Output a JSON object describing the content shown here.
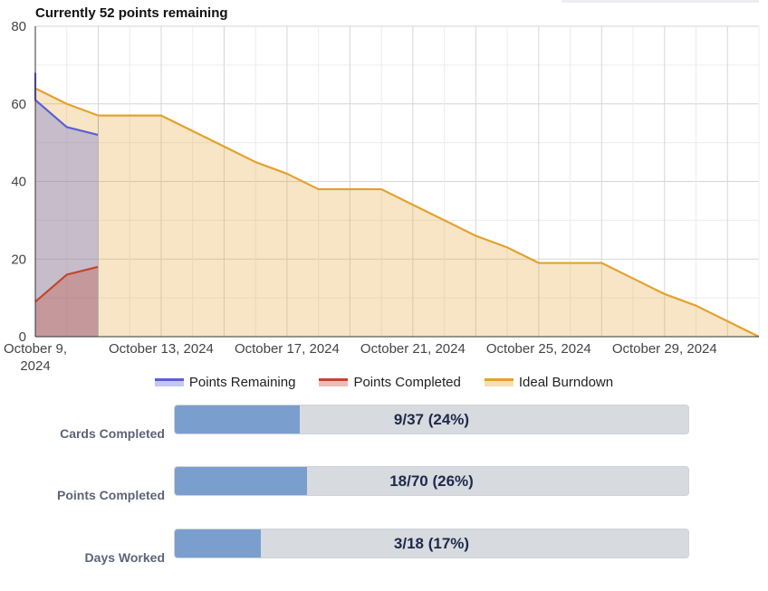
{
  "header": {
    "title": "Currently 52 points remaining"
  },
  "chart_data": {
    "type": "area",
    "title": "Currently 52 points remaining",
    "ylim": [
      0,
      80
    ],
    "yticks": [
      0,
      20,
      40,
      60,
      80
    ],
    "xlim": [
      "2024-10-09",
      "2024-11-01"
    ],
    "xtick_labels": [
      "October 9, 2024",
      "October 13, 2024",
      "October 17, 2024",
      "October 21, 2024",
      "October 25, 2024",
      "October 29, 2024"
    ],
    "grid": true,
    "legend_position": "bottom",
    "series": [
      {
        "name": "Points Remaining",
        "color": "#5b5fd6",
        "points": [
          [
            "2024-10-09",
            68
          ],
          [
            "2024-10-09",
            61
          ],
          [
            "2024-10-10",
            54
          ],
          [
            "2024-10-11",
            52
          ]
        ]
      },
      {
        "name": "Points Completed",
        "color": "#c0472d",
        "points": [
          [
            "2024-10-09",
            9
          ],
          [
            "2024-10-10",
            16
          ],
          [
            "2024-10-11",
            18
          ]
        ]
      },
      {
        "name": "Ideal Burndown",
        "color": "#e3a22f",
        "points": [
          [
            "2024-10-09",
            64
          ],
          [
            "2024-10-10",
            60
          ],
          [
            "2024-10-11",
            57
          ],
          [
            "2024-10-12",
            57
          ],
          [
            "2024-10-13",
            57
          ],
          [
            "2024-10-14",
            53
          ],
          [
            "2024-10-15",
            49
          ],
          [
            "2024-10-16",
            45
          ],
          [
            "2024-10-17",
            42
          ],
          [
            "2024-10-18",
            38
          ],
          [
            "2024-10-19",
            38
          ],
          [
            "2024-10-20",
            38
          ],
          [
            "2024-10-21",
            34
          ],
          [
            "2024-10-22",
            30
          ],
          [
            "2024-10-23",
            26
          ],
          [
            "2024-10-24",
            23
          ],
          [
            "2024-10-25",
            19
          ],
          [
            "2024-10-26",
            19
          ],
          [
            "2024-10-27",
            19
          ],
          [
            "2024-10-28",
            15
          ],
          [
            "2024-10-29",
            11
          ],
          [
            "2024-10-30",
            8
          ],
          [
            "2024-10-31",
            4
          ],
          [
            "2024-11-01",
            0
          ]
        ]
      }
    ]
  },
  "legend": [
    "Points Remaining",
    "Points Completed",
    "Ideal Burndown"
  ],
  "stats": [
    {
      "label": "Cards Completed",
      "value_text": "9/37 (24%)",
      "fraction": 0.243
    },
    {
      "label": "Points Completed",
      "value_text": "18/70 (26%)",
      "fraction": 0.257
    },
    {
      "label": "Days Worked",
      "value_text": "3/18 (17%)",
      "fraction": 0.167
    }
  ]
}
